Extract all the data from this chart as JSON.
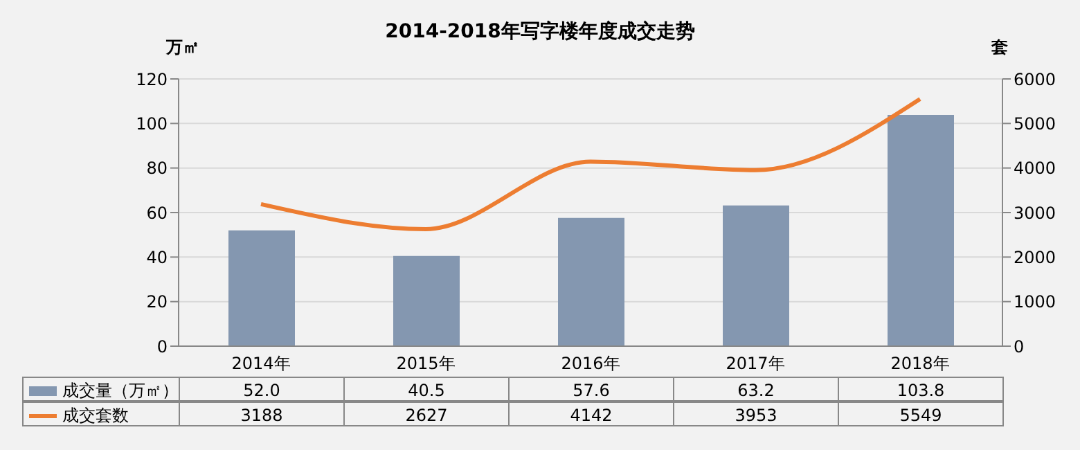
{
  "chart_data": {
    "type": "bar",
    "title": "2014-2018年写字楼年度成交走势",
    "ylabel": "万㎡",
    "y2label": "套",
    "categories": [
      "2014年",
      "2015年",
      "2016年",
      "2017年",
      "2018年"
    ],
    "series": [
      {
        "name": "成交量（万㎡）",
        "color": "#8497b0",
        "values": [
          52.0,
          40.5,
          57.6,
          63.2,
          103.8
        ],
        "value_labels": [
          "52.0",
          "40.5",
          "57.6",
          "63.2",
          "103.8"
        ]
      },
      {
        "name": "成交套数",
        "type": "line",
        "axis": "y2",
        "color": "#ed7d31",
        "values": [
          3188,
          2627,
          4142,
          3953,
          5549
        ],
        "value_labels": [
          "3188",
          "2627",
          "4142",
          "3953",
          "5549"
        ]
      }
    ],
    "ylim": [
      0,
      120
    ],
    "yticks": [
      0,
      20,
      40,
      60,
      80,
      100,
      120
    ],
    "y2lim": [
      0,
      6000
    ],
    "y2ticks": [
      0,
      1000,
      2000,
      3000,
      4000,
      5000,
      6000
    ],
    "grid": "y",
    "legend": "bottom",
    "marker": "none",
    "line_style": "solid"
  }
}
